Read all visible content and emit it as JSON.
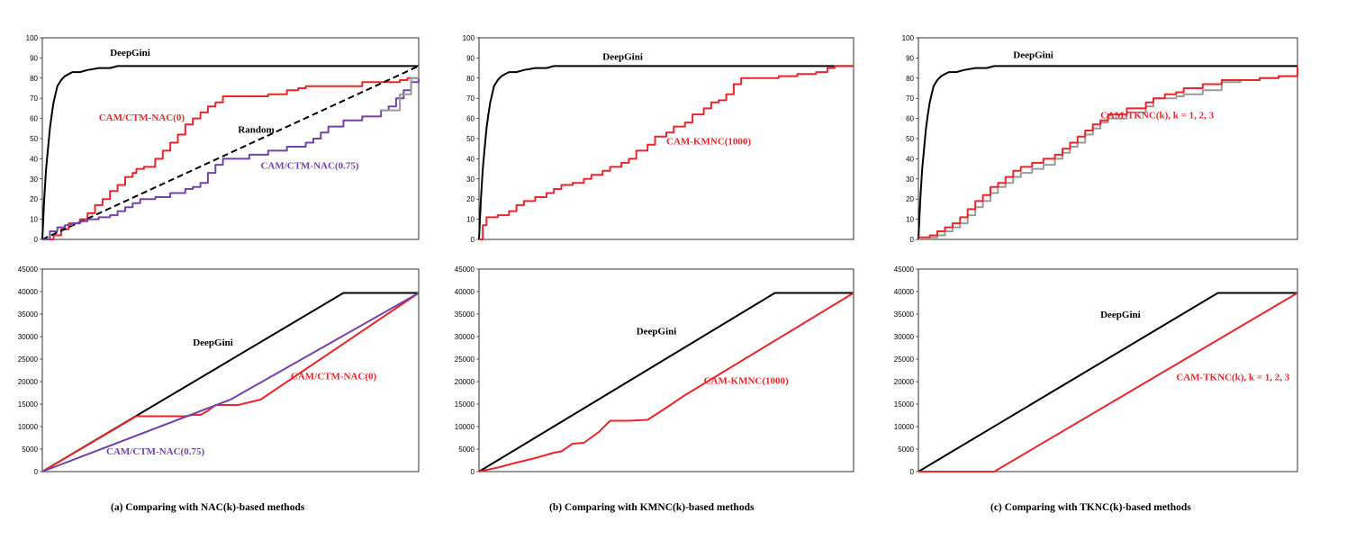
{
  "colors": {
    "deepgini": "#000000",
    "red": "#e8262b",
    "purple": "#7343a8",
    "gray": "#9a9a9a"
  },
  "captions": [
    "(a)  Comparing with NAC(k)-based methods",
    "(b)  Comparing with KMNC(k)-based methods",
    "(c)  Comparing with TKNC(k)-based methods"
  ],
  "chart_data": [
    {
      "type": "line",
      "ylim": [
        0,
        100
      ],
      "xlim": [
        0,
        1
      ],
      "yticks": [
        "0",
        "10",
        "20",
        "30",
        "40",
        "50",
        "60",
        "70",
        "80",
        "90",
        "100"
      ],
      "series": [
        {
          "name": "DeepGini",
          "color": "#000000",
          "step": false,
          "x": [
            0,
            0.005,
            0.01,
            0.015,
            0.02,
            0.025,
            0.03,
            0.035,
            0.04,
            0.05,
            0.06,
            0.07,
            0.08,
            0.1,
            0.12,
            0.15,
            0.18,
            0.2,
            0.5,
            1.0
          ],
          "y": [
            0,
            20,
            35,
            45,
            55,
            62,
            68,
            72,
            76,
            79,
            81,
            82,
            83,
            83,
            84,
            85,
            85,
            86,
            86,
            86
          ]
        },
        {
          "name": "CAM/CTM-NAC(0)",
          "color": "#e8262b",
          "step": true,
          "x": [
            0,
            0.03,
            0.05,
            0.07,
            0.1,
            0.12,
            0.14,
            0.16,
            0.18,
            0.2,
            0.22,
            0.24,
            0.25,
            0.27,
            0.3,
            0.32,
            0.34,
            0.36,
            0.38,
            0.4,
            0.42,
            0.44,
            0.46,
            0.48,
            0.5,
            0.55,
            0.6,
            0.65,
            0.68,
            0.7,
            0.75,
            0.8,
            0.85,
            0.9,
            0.95,
            0.97,
            1.0
          ],
          "y": [
            0,
            2,
            5,
            8,
            10,
            13,
            17,
            20,
            24,
            27,
            31,
            33,
            35,
            36,
            40,
            44,
            48,
            52,
            57,
            60,
            63,
            66,
            68,
            71,
            71,
            71,
            72,
            74,
            75,
            76,
            76,
            76,
            78,
            78,
            79,
            80,
            86
          ]
        },
        {
          "name": "Random",
          "color": "#000000",
          "dashed": true,
          "step": false,
          "x": [
            0,
            1.0
          ],
          "y": [
            0,
            86
          ]
        },
        {
          "name": "CAM/CTM-NAC(0.75)",
          "color": "#7343a8",
          "step": true,
          "x": [
            0,
            0.02,
            0.04,
            0.06,
            0.08,
            0.1,
            0.12,
            0.15,
            0.18,
            0.2,
            0.22,
            0.24,
            0.26,
            0.3,
            0.34,
            0.38,
            0.4,
            0.42,
            0.44,
            0.46,
            0.48,
            0.5,
            0.55,
            0.6,
            0.65,
            0.7,
            0.72,
            0.74,
            0.76,
            0.8,
            0.85,
            0.9,
            0.92,
            0.94,
            0.96,
            0.98,
            1.0
          ],
          "y": [
            0,
            4,
            6,
            7,
            8,
            9,
            10,
            11,
            12,
            14,
            16,
            18,
            20,
            21,
            23,
            25,
            26,
            28,
            33,
            37,
            40,
            40,
            42,
            44,
            46,
            48,
            50,
            53,
            56,
            59,
            61,
            64,
            66,
            70,
            74,
            78,
            85
          ]
        },
        {
          "name": "CAM/CTM-NAC(0.75)-gray",
          "color": "#9a9a9a",
          "step": true,
          "x": [
            0.9,
            0.95,
            0.98,
            1.0
          ],
          "y": [
            64,
            72,
            80,
            86
          ]
        }
      ],
      "labels": [
        {
          "text": "DeepGini",
          "x": 0.18,
          "y": 91,
          "color": "#000000"
        },
        {
          "text": "CAM/CTM-NAC(0)",
          "x": 0.15,
          "y": 59,
          "color": "#e8262b"
        },
        {
          "text": "Random",
          "x": 0.52,
          "y": 53,
          "color": "#000000"
        },
        {
          "text": "CAM/CTM-NAC(0.75)",
          "x": 0.58,
          "y": 35,
          "color": "#7343a8"
        }
      ]
    },
    {
      "type": "line",
      "ylim": [
        0,
        100
      ],
      "xlim": [
        0,
        1
      ],
      "yticks": [
        "0",
        "10",
        "20",
        "30",
        "40",
        "50",
        "60",
        "70",
        "80",
        "90",
        "100"
      ],
      "series": [
        {
          "name": "DeepGini",
          "color": "#000000",
          "step": false,
          "x": [
            0,
            0.005,
            0.01,
            0.015,
            0.02,
            0.025,
            0.03,
            0.035,
            0.04,
            0.05,
            0.06,
            0.07,
            0.08,
            0.1,
            0.12,
            0.15,
            0.18,
            0.2,
            0.5,
            1.0
          ],
          "y": [
            0,
            20,
            35,
            45,
            55,
            62,
            68,
            72,
            76,
            79,
            81,
            82,
            83,
            83,
            84,
            85,
            85,
            86,
            86,
            86
          ]
        },
        {
          "name": "CAM-KMNC(1000)",
          "color": "#e8262b",
          "step": true,
          "x": [
            0,
            0.01,
            0.02,
            0.05,
            0.08,
            0.1,
            0.12,
            0.15,
            0.18,
            0.2,
            0.22,
            0.25,
            0.28,
            0.3,
            0.33,
            0.35,
            0.38,
            0.4,
            0.42,
            0.45,
            0.47,
            0.5,
            0.52,
            0.55,
            0.57,
            0.6,
            0.62,
            0.64,
            0.66,
            0.68,
            0.7,
            0.75,
            0.8,
            0.85,
            0.9,
            0.93,
            0.95,
            1.0
          ],
          "y": [
            0,
            7,
            11,
            12,
            14,
            17,
            19,
            21,
            23,
            25,
            27,
            28,
            30,
            32,
            34,
            36,
            38,
            40,
            44,
            47,
            51,
            53,
            56,
            58,
            62,
            65,
            68,
            69,
            72,
            77,
            80,
            80,
            81,
            82,
            83,
            85,
            86,
            86
          ]
        }
      ],
      "labels": [
        {
          "text": "DeepGini",
          "x": 0.33,
          "y": 89,
          "color": "#000000"
        },
        {
          "text": "CAM-KMNC(1000)",
          "x": 0.5,
          "y": 47,
          "color": "#e8262b"
        }
      ]
    },
    {
      "type": "line",
      "ylim": [
        0,
        100
      ],
      "xlim": [
        0,
        1
      ],
      "yticks": [
        "0",
        "10",
        "20",
        "30",
        "40",
        "50",
        "60",
        "70",
        "80",
        "90",
        "100"
      ],
      "series": [
        {
          "name": "DeepGini",
          "color": "#000000",
          "step": false,
          "x": [
            0,
            0.005,
            0.01,
            0.015,
            0.02,
            0.025,
            0.03,
            0.035,
            0.04,
            0.05,
            0.06,
            0.07,
            0.08,
            0.1,
            0.12,
            0.15,
            0.18,
            0.2,
            0.5,
            1.0
          ],
          "y": [
            0,
            20,
            35,
            45,
            55,
            62,
            68,
            72,
            76,
            79,
            81,
            82,
            83,
            83,
            84,
            85,
            85,
            86,
            86,
            86
          ]
        },
        {
          "name": "CAM-TKNC(k), k = 1, 2, 3 (gray)",
          "color": "#9a9a9a",
          "step": true,
          "x": [
            0,
            0.03,
            0.05,
            0.07,
            0.09,
            0.11,
            0.13,
            0.15,
            0.17,
            0.19,
            0.21,
            0.23,
            0.25,
            0.27,
            0.3,
            0.33,
            0.36,
            0.38,
            0.4,
            0.42,
            0.44,
            0.46,
            0.48,
            0.5,
            0.55,
            0.6,
            0.62,
            0.65,
            0.68,
            0.7,
            0.75,
            0.8,
            0.85,
            0.9,
            0.95,
            0.97,
            1.0
          ],
          "y": [
            0,
            1,
            2,
            4,
            6,
            8,
            12,
            16,
            19,
            23,
            26,
            28,
            31,
            33,
            35,
            37,
            40,
            43,
            46,
            48,
            52,
            55,
            58,
            60,
            63,
            66,
            70,
            70,
            71,
            72,
            74,
            78,
            79,
            80,
            81,
            81,
            86
          ]
        },
        {
          "name": "CAM-TKNC(k), k = 1, 2, 3",
          "color": "#e8262b",
          "step": true,
          "x": [
            0,
            0.03,
            0.05,
            0.07,
            0.09,
            0.11,
            0.13,
            0.15,
            0.17,
            0.19,
            0.21,
            0.23,
            0.25,
            0.27,
            0.3,
            0.33,
            0.36,
            0.38,
            0.4,
            0.42,
            0.44,
            0.46,
            0.48,
            0.5,
            0.55,
            0.6,
            0.62,
            0.65,
            0.68,
            0.7,
            0.75,
            0.8,
            0.85,
            0.9,
            0.95,
            0.97,
            1.0
          ],
          "y": [
            1,
            2,
            4,
            6,
            8,
            11,
            15,
            19,
            22,
            26,
            28,
            31,
            34,
            36,
            38,
            40,
            42,
            45,
            48,
            51,
            54,
            57,
            59,
            62,
            65,
            68,
            70,
            72,
            73,
            75,
            77,
            79,
            79,
            80,
            81,
            81,
            86
          ]
        }
      ],
      "labels": [
        {
          "text": "DeepGini",
          "x": 0.25,
          "y": 90,
          "color": "#000000"
        },
        {
          "text": "CAM-TKNC(k), k = 1, 2, 3",
          "x": 0.48,
          "y": 60,
          "color": "#e8262b"
        }
      ]
    },
    {
      "type": "line",
      "ylim": [
        0,
        45000
      ],
      "xlim": [
        0,
        1
      ],
      "yticks": [
        "0",
        "5000",
        "10000",
        "15000",
        "20000",
        "25000",
        "30000",
        "35000",
        "40000",
        "45000"
      ],
      "series": [
        {
          "name": "DeepGini",
          "color": "#000000",
          "step": false,
          "x": [
            0,
            0.8,
            1.0
          ],
          "y": [
            0,
            39700,
            39700
          ]
        },
        {
          "name": "CAM/CTM-NAC(0)",
          "color": "#e8262b",
          "step": false,
          "x": [
            0,
            0.25,
            0.38,
            0.4,
            0.42,
            0.44,
            0.46,
            0.5,
            0.52,
            0.58,
            1.0
          ],
          "y": [
            0,
            12300,
            12300,
            12600,
            12600,
            13500,
            14800,
            14800,
            14800,
            16000,
            39700
          ]
        },
        {
          "name": "CAM/CTM-NAC(0.75)",
          "color": "#7343a8",
          "step": false,
          "x": [
            0,
            0.5,
            1.0
          ],
          "y": [
            0,
            16000,
            39700
          ]
        }
      ],
      "labels": [
        {
          "text": "DeepGini",
          "x": 0.4,
          "y": 28000,
          "color": "#000000"
        },
        {
          "text": "CAM/CTM-NAC(0)",
          "x": 0.66,
          "y": 20500,
          "color": "#e8262b"
        },
        {
          "text": "CAM/CTM-NAC(0.75)",
          "x": 0.17,
          "y": 3800,
          "color": "#7343a8"
        }
      ]
    },
    {
      "type": "line",
      "ylim": [
        0,
        45000
      ],
      "xlim": [
        0,
        1
      ],
      "yticks": [
        "0",
        "5000",
        "10000",
        "15000",
        "20000",
        "25000",
        "30000",
        "35000",
        "40000",
        "45000"
      ],
      "series": [
        {
          "name": "DeepGini",
          "color": "#000000",
          "step": false,
          "x": [
            0,
            0.79,
            1.0
          ],
          "y": [
            0,
            39700,
            39700
          ]
        },
        {
          "name": "CAM-KMNC(1000)",
          "color": "#e8262b",
          "step": false,
          "x": [
            0,
            0.05,
            0.1,
            0.15,
            0.2,
            0.22,
            0.25,
            0.28,
            0.32,
            0.35,
            0.4,
            0.45,
            0.5,
            0.55,
            1.0
          ],
          "y": [
            0,
            900,
            2000,
            3000,
            4200,
            4500,
            6200,
            6400,
            8800,
            11300,
            11300,
            11500,
            14200,
            17000,
            39700
          ]
        }
      ],
      "labels": [
        {
          "text": "DeepGini",
          "x": 0.42,
          "y": 30500,
          "color": "#000000"
        },
        {
          "text": "CAM-KMNC(1000)",
          "x": 0.6,
          "y": 19500,
          "color": "#e8262b"
        }
      ]
    },
    {
      "type": "line",
      "ylim": [
        0,
        45000
      ],
      "xlim": [
        0,
        1
      ],
      "yticks": [
        "0",
        "5000",
        "10000",
        "15000",
        "20000",
        "25000",
        "30000",
        "35000",
        "40000",
        "45000"
      ],
      "series": [
        {
          "name": "DeepGini",
          "color": "#000000",
          "step": false,
          "x": [
            0,
            0.79,
            1.0
          ],
          "y": [
            0,
            39700,
            39700
          ]
        },
        {
          "name": "CAM-TKNC(k), k = 1, 2, 3",
          "color": "#e8262b",
          "step": false,
          "x": [
            0,
            0.2,
            1.0
          ],
          "y": [
            0,
            0,
            39700
          ]
        }
      ],
      "labels": [
        {
          "text": "DeepGini",
          "x": 0.48,
          "y": 34200,
          "color": "#000000"
        },
        {
          "text": "CAM-TKNC(k), k = 1, 2, 3",
          "x": 0.68,
          "y": 20300,
          "color": "#e8262b"
        }
      ]
    }
  ]
}
